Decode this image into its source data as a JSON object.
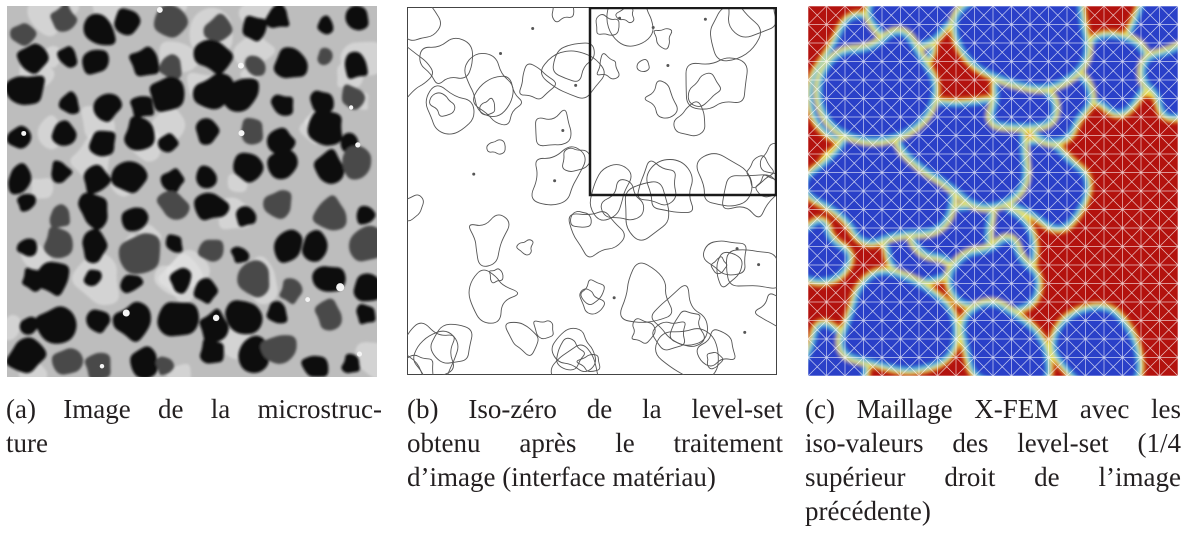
{
  "figure": {
    "panels": [
      {
        "id": "a",
        "kind": "grayscale-microstructure-photo",
        "caption_lines": [
          "(a) Image de la microstruc-",
          "ture"
        ]
      },
      {
        "id": "b",
        "kind": "iso-zero-contour-plot",
        "caption_lines": [
          "(b) Iso-zéro de la level-set",
          "obtenu après le traitement",
          "d’image (interface matériau)"
        ]
      },
      {
        "id": "c",
        "kind": "xfem-mesh-level-set-colormap",
        "caption_lines": [
          "(c) Maillage X-FEM avec les",
          "iso-valeurs des level-set (1/4",
          "supérieur droit de l’image",
          "précédente)"
        ]
      }
    ],
    "colors": {
      "pore": "#0e0e10",
      "matrix": "#bdbdbd",
      "contour": "#555555",
      "frame": "#1a1a1a",
      "phase_high": "#b3120e",
      "phase_low": "#2b3fc8",
      "interface": "#f2e33a"
    }
  }
}
